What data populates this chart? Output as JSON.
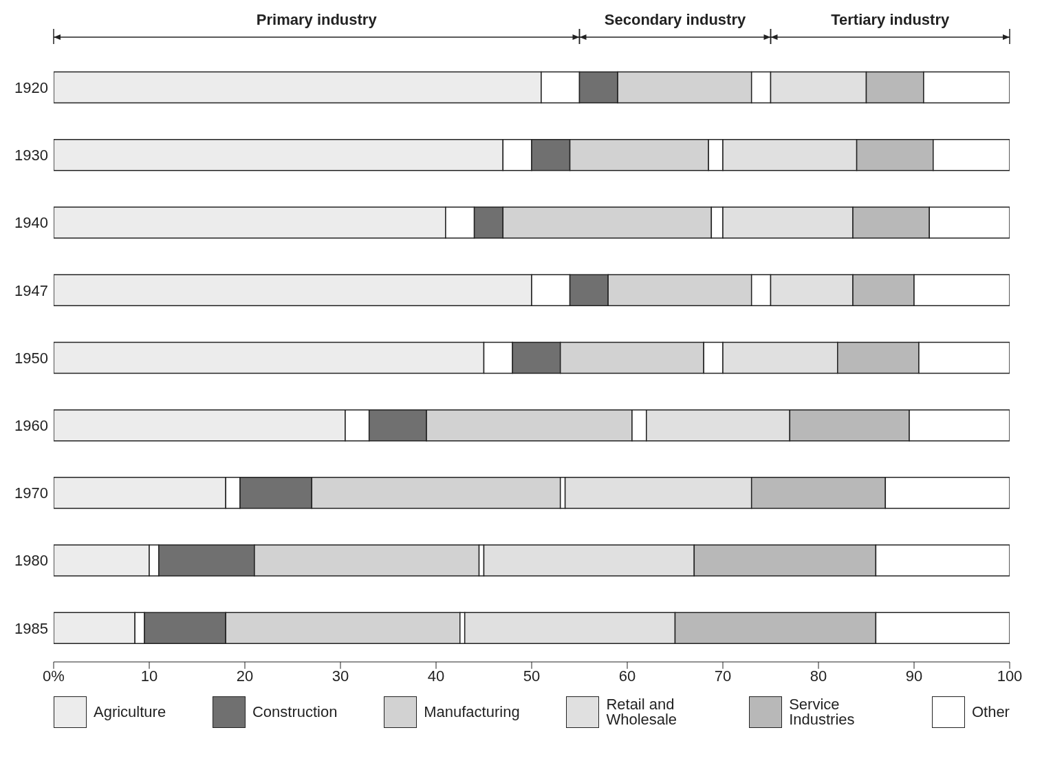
{
  "chart_data": {
    "type": "bar",
    "orientation": "horizontal",
    "stacked": true,
    "categories": [
      "1920",
      "1930",
      "1940",
      "1947",
      "1950",
      "1960",
      "1970",
      "1980",
      "1985"
    ],
    "series": [
      {
        "name": "Agriculture",
        "color": "#ececec",
        "values": [
          51,
          47,
          41,
          50,
          45,
          30.5,
          18,
          10,
          8.5
        ]
      },
      {
        "color": "#ffffff",
        "values": [
          4,
          3,
          3,
          4,
          3,
          2.5,
          1.5,
          1,
          1
        ]
      },
      {
        "name": "Construction",
        "color": "#707070",
        "values": [
          4,
          4,
          3,
          4,
          5,
          6,
          7.5,
          10,
          8.5
        ]
      },
      {
        "name": "Manufacturing",
        "color": "#d2d2d2",
        "values": [
          14,
          14.5,
          21.8,
          15,
          15,
          21.5,
          26,
          23.5,
          24.5
        ]
      },
      {
        "color": "#ffffff",
        "values": [
          2,
          1.5,
          1.2,
          2,
          2,
          1.5,
          0.5,
          0.5,
          0.5
        ]
      },
      {
        "name": "Retail and Wholesale",
        "color": "#e0e0e0",
        "values": [
          10,
          14,
          13.6,
          8.6,
          12,
          15,
          19.5,
          22,
          22
        ]
      },
      {
        "name": "Service Industries",
        "color": "#b8b8b8",
        "values": [
          6,
          8,
          8,
          6.4,
          8.5,
          12.5,
          14,
          19,
          21
        ]
      },
      {
        "name": "Other",
        "color": "#ffffff",
        "values": [
          9,
          8,
          8.4,
          10,
          9.5,
          10.5,
          13,
          14,
          14
        ]
      }
    ],
    "xlim": [
      0,
      100
    ],
    "xticks": [
      {
        "value": 0,
        "label": "0%"
      },
      10,
      20,
      30,
      40,
      50,
      60,
      70,
      80,
      90,
      100
    ],
    "annotations": [
      "Primary industry",
      "Secondary industry",
      "Tertiary industry"
    ],
    "legend": "bottom"
  }
}
